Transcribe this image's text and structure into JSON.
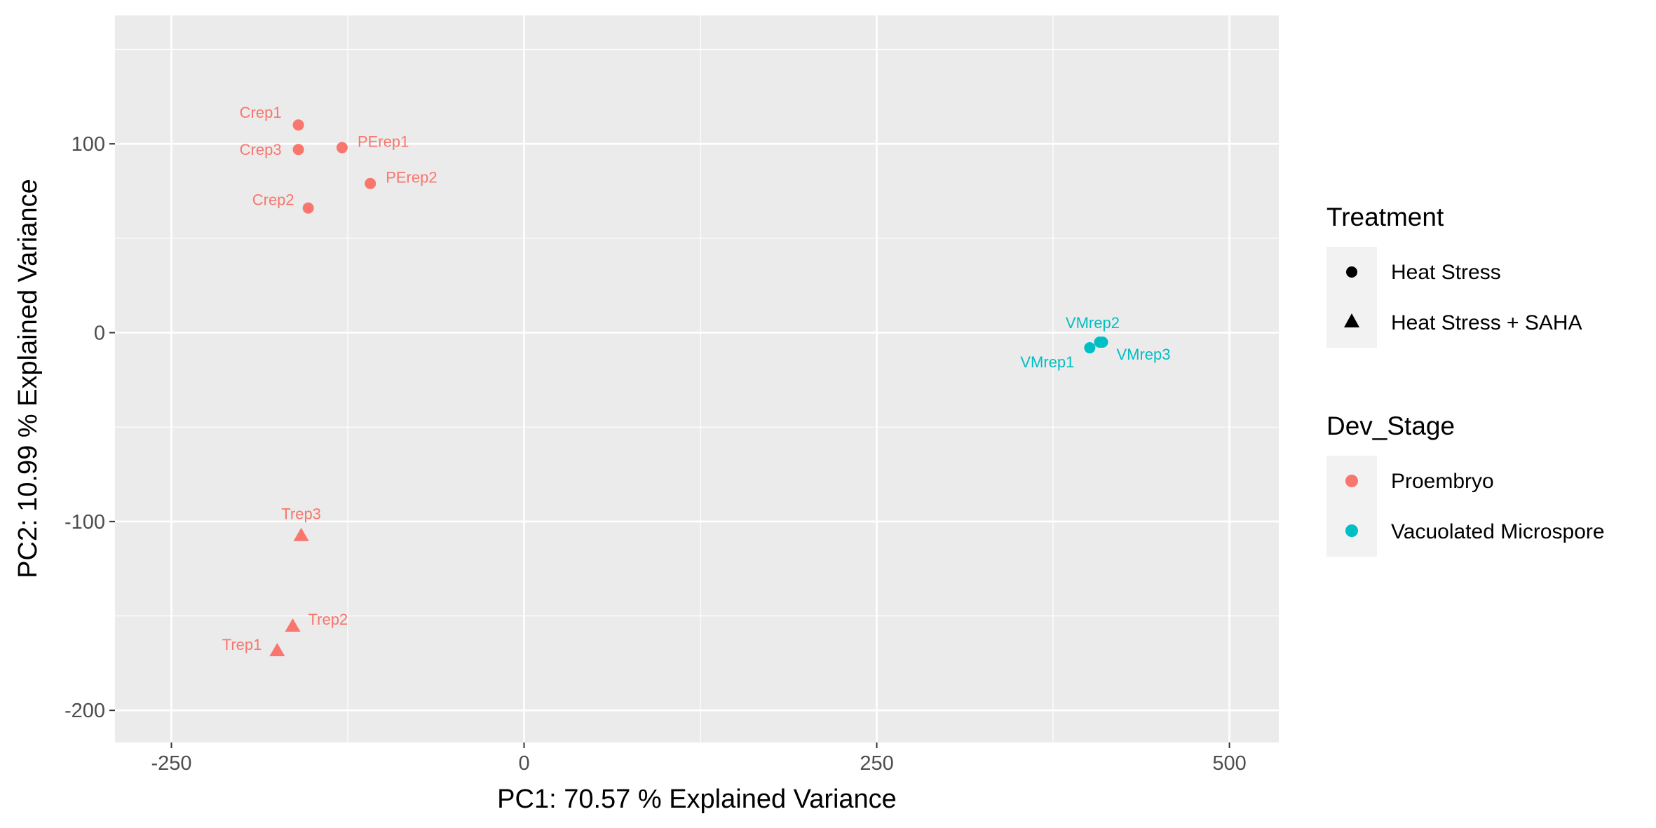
{
  "chart_data": {
    "type": "scatter",
    "xlabel": "PC1: 70.57 % Explained Variance",
    "ylabel": "PC2: 10.99 % Explained Variance",
    "xlim": [
      -290,
      535
    ],
    "ylim": [
      -217,
      168
    ],
    "x_ticks": [
      -250,
      0,
      250,
      500
    ],
    "y_ticks": [
      -200,
      -100,
      0,
      100
    ],
    "x_tick_labels": [
      "-250",
      "0",
      "250",
      "500"
    ],
    "y_tick_labels": [
      "-200",
      "-100",
      "0",
      "100"
    ],
    "grid": true,
    "legend_position": "right",
    "colors": {
      "Proembryo": "#F8766D",
      "Vacuolated Microspore": "#00BFC4"
    },
    "legends": [
      {
        "title": "Treatment",
        "entries": [
          {
            "label": "Heat Stress",
            "shape": "circle"
          },
          {
            "label": "Heat Stress + SAHA",
            "shape": "triangle"
          }
        ]
      },
      {
        "title": "Dev_Stage",
        "entries": [
          {
            "label": "Proembryo",
            "color": "#F8766D"
          },
          {
            "label": "Vacuolated Microspore",
            "color": "#00BFC4"
          }
        ]
      }
    ],
    "points": [
      {
        "label": "Crep1",
        "x": -160,
        "y": 110,
        "treatment": "Heat Stress",
        "dev_stage": "Proembryo"
      },
      {
        "label": "Crep3",
        "x": -160,
        "y": 97,
        "treatment": "Heat Stress",
        "dev_stage": "Proembryo"
      },
      {
        "label": "PErep1",
        "x": -129,
        "y": 98,
        "treatment": "Heat Stress",
        "dev_stage": "Proembryo"
      },
      {
        "label": "PErep2",
        "x": -109,
        "y": 79,
        "treatment": "Heat Stress",
        "dev_stage": "Proembryo"
      },
      {
        "label": "Crep2",
        "x": -153,
        "y": 66,
        "treatment": "Heat Stress",
        "dev_stage": "Proembryo"
      },
      {
        "label": "VMrep2",
        "x": 408,
        "y": -5,
        "treatment": "Heat Stress",
        "dev_stage": "Vacuolated Microspore"
      },
      {
        "label": "VMrep1",
        "x": 401,
        "y": -8,
        "treatment": "Heat Stress",
        "dev_stage": "Vacuolated Microspore"
      },
      {
        "label": "VMrep3",
        "x": 410,
        "y": -5,
        "treatment": "Heat Stress",
        "dev_stage": "Vacuolated Microspore"
      },
      {
        "label": "Trep3",
        "x": -158,
        "y": -107,
        "treatment": "Heat Stress + SAHA",
        "dev_stage": "Proembryo"
      },
      {
        "label": "Trep2",
        "x": -164,
        "y": -155,
        "treatment": "Heat Stress + SAHA",
        "dev_stage": "Proembryo"
      },
      {
        "label": "Trep1",
        "x": -175,
        "y": -168,
        "treatment": "Heat Stress + SAHA",
        "dev_stage": "Proembryo"
      }
    ]
  }
}
